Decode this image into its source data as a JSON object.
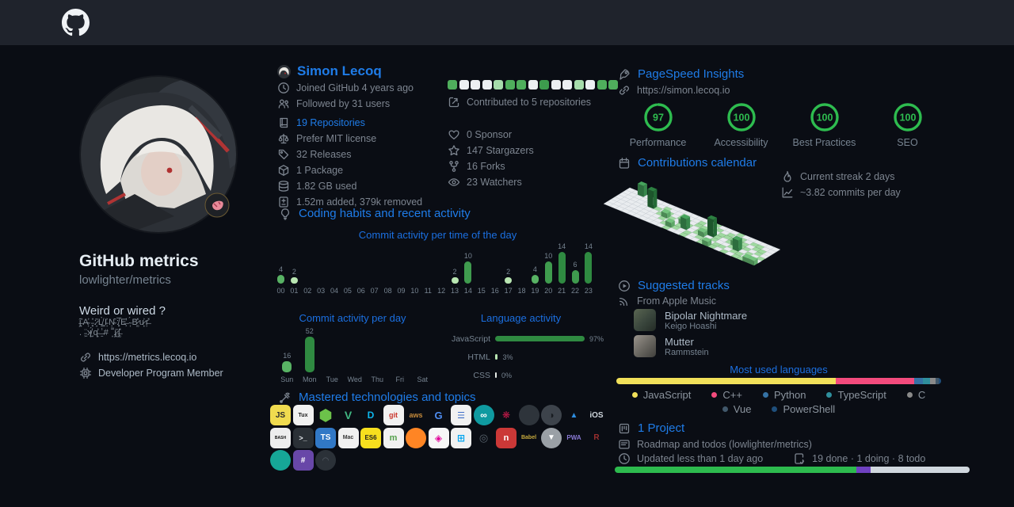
{
  "accent": {
    "blue": "#1f7ce8",
    "green": "#2ebc4f",
    "bg": "#0a0d14",
    "topbar": "#1f232c"
  },
  "left": {
    "title": "GitHub metrics",
    "subtitle": "lowlighter/metrics",
    "tagline": "Weird or wired ?",
    "glitch1": "ĵ̶̟̏A̴͎͐ ̵͓̎:̷̘͂L̸͇̀I̵͎͐Ņ̴̂:̸͓̅E̶͕̓ ̴͎́B̷͚̽u̷̙͐ŗ̶̽",
    "glitch2": ".  ̵͖̈ʞ̸̺́q̵̙̓ ̶̱̾# ͙͌ɟ̷̘͂ʃ̶̻̽",
    "website": "https://metrics.lecoq.io",
    "membership": "Developer Program Member"
  },
  "user": {
    "name": "Simon Lecoq",
    "joined": "Joined GitHub 4 years ago",
    "followed": "Followed by 31 users",
    "repositories": "19 Repositories",
    "license": "Prefer MIT license",
    "releases": "32 Releases",
    "packages": "1 Package",
    "storage": "1.82 GB used",
    "lines": "1.52m added, 379k removed",
    "contributed": "Contributed to 5 repositories",
    "sponsors": "0 Sponsor",
    "stargazers": "147 Stargazers",
    "forks": "16 Forks",
    "watchers": "23 Watchers",
    "contributed_squares": [
      "#4fae5c",
      "#eceff2",
      "#eceff2",
      "#eceff2",
      "#a6dcab",
      "#4fae5c",
      "#4fae5c",
      "#eceff2",
      "#3d9c4d",
      "#eceff2",
      "#eceff2",
      "#a6dcab",
      "#eceff2",
      "#4fae5c",
      "#4fae5c"
    ]
  },
  "habits": {
    "title": "Coding habits and recent activity"
  },
  "tech": {
    "title": "Mastered technologies and topics",
    "rows": [
      [
        {
          "n": "javascript-icon",
          "l": "JS",
          "bg": "#f0db4f",
          "fg": "#2b2b2b",
          "sh": "s",
          "fs": 10
        },
        {
          "n": "linux-icon",
          "l": "Tux",
          "bg": "#f1f1f1",
          "fg": "#1a1a1a",
          "sh": "s",
          "fs": 7
        },
        {
          "n": "nodejs-icon",
          "l": "⬢",
          "bg": "",
          "fg": "#6cc24a",
          "sh": "n",
          "fs": 20
        },
        {
          "n": "vuejs-icon",
          "l": "V",
          "bg": "",
          "fg": "#41b883",
          "sh": "n",
          "fs": 14
        },
        {
          "n": "docker-icon",
          "l": "D",
          "bg": "",
          "fg": "#0db7ed",
          "sh": "n",
          "fs": 12
        },
        {
          "n": "git-icon",
          "l": "git",
          "bg": "#f1f1f1",
          "fg": "#c9342a",
          "sh": "s",
          "fs": 9
        },
        {
          "n": "aws-icon",
          "l": "aws",
          "bg": "",
          "fg": "#c78b3b",
          "sh": "n",
          "fs": 9
        },
        {
          "n": "google-icon",
          "l": "G",
          "bg": "",
          "fg": "#4e8cf0",
          "sh": "n",
          "fs": 13
        },
        {
          "n": "sql-icon",
          "l": "☰",
          "bg": "#f1f1f1",
          "fg": "#3f6ec7",
          "sh": "s",
          "fs": 11
        },
        {
          "n": "arduino-icon",
          "l": "∞",
          "bg": "#0f9aa0",
          "fg": "#ffffff",
          "sh": "c",
          "fs": 12
        },
        {
          "n": "raspberrypi-icon",
          "l": "❋",
          "bg": "",
          "fg": "#c51a4a",
          "sh": "n",
          "fs": 12
        },
        {
          "n": "github-icon",
          "l": "",
          "bg": "#2e343b",
          "fg": "#15191e",
          "sh": "c",
          "fs": 10
        },
        {
          "n": "json-icon",
          "l": "◑",
          "bg": "#3d434b",
          "fg": "#181c21",
          "sh": "c",
          "fs": 12
        },
        {
          "n": "azure-icon",
          "l": "▲",
          "bg": "",
          "fg": "#2e8de0",
          "sh": "n",
          "fs": 10
        },
        {
          "n": "ios-icon",
          "l": "iOS",
          "bg": "",
          "fg": "#cfd6dd",
          "sh": "n",
          "fs": 10
        }
      ],
      [
        {
          "n": "bash-icon",
          "l": "BASH",
          "bg": "#ededed",
          "fg": "#101010",
          "sh": "s",
          "fs": 5
        },
        {
          "n": "terminal-icon",
          "l": "&gt;_",
          "bg": "#2a3036",
          "fg": "#e2e6ea",
          "sh": "s",
          "fs": 9
        },
        {
          "n": "typescript-icon",
          "l": "TS",
          "bg": "#3178c6",
          "fg": "#ffffff",
          "sh": "s",
          "fs": 10
        },
        {
          "n": "macos-icon",
          "l": "Mac",
          "bg": "#f1f1f1",
          "fg": "#3a3a3a",
          "sh": "s",
          "fs": 7
        },
        {
          "n": "es6-icon",
          "l": "ES6",
          "bg": "#f7df1e",
          "fg": "#1f1f1f",
          "sh": "s",
          "fs": 8
        },
        {
          "n": "mongodb-icon",
          "l": "m",
          "bg": "#f1f1f1",
          "fg": "#55a04c",
          "sh": "s",
          "fs": 11
        },
        {
          "n": "firefox-icon",
          "l": "",
          "bg": "#ff8524",
          "fg": "#ffffff",
          "sh": "c",
          "fs": 9
        },
        {
          "n": "graphql-icon",
          "l": "◈",
          "bg": "#f7f7f7",
          "fg": "#e10098",
          "sh": "s",
          "fs": 12
        },
        {
          "n": "windows-icon",
          "l": "⊞",
          "bg": "#f1f1f1",
          "fg": "#00a4ef",
          "sh": "s",
          "fs": 12
        },
        {
          "n": "electron-icon",
          "l": "◎",
          "bg": "",
          "fg": "#59646e",
          "sh": "n",
          "fs": 13
        },
        {
          "n": "npm-icon",
          "l": "n",
          "bg": "#cb3837",
          "fg": "#ffffff",
          "sh": "s",
          "fs": 11
        },
        {
          "n": "babel-icon",
          "l": "Babel",
          "bg": "",
          "fg": "#c8ab3e",
          "sh": "n",
          "fs": 7
        },
        {
          "n": "v-lang-icon",
          "l": "▼",
          "bg": "#9aa0a6",
          "fg": "#ffffff",
          "sh": "c",
          "fs": 10
        },
        {
          "n": "pwa-icon",
          "l": "PWA",
          "bg": "",
          "fg": "#8a7ad6",
          "sh": "n",
          "fs": 8
        },
        {
          "n": "rust-icon",
          "l": "R",
          "bg": "",
          "fg": "#9c2f2f",
          "sh": "n",
          "fs": 10
        }
      ],
      [
        {
          "n": "ipfs-icon",
          "l": "",
          "bg": "#16a797",
          "fg": "#0b4a44",
          "sh": "c",
          "fs": 8
        },
        {
          "n": "webassembly-icon",
          "l": "#",
          "bg": "#6847a8",
          "fg": "#ffffff",
          "sh": "s",
          "fs": 10
        },
        {
          "n": "swoosh-logo-icon",
          "l": "◠",
          "bg": "#2b3138",
          "fg": "#5a626b",
          "sh": "c",
          "fs": 10
        }
      ]
    ]
  },
  "pagespeed": {
    "title": "PageSpeed Insights",
    "url": "https://simon.lecoq.io",
    "scores": [
      {
        "label": "Performance",
        "value": 97
      },
      {
        "label": "Accessibility",
        "value": 100
      },
      {
        "label": "Best Practices",
        "value": 100
      },
      {
        "label": "SEO",
        "value": 100
      }
    ]
  },
  "calendar": {
    "title": "Contributions calendar",
    "streak": "Current streak 2 days",
    "rate": "~3.82 commits per day"
  },
  "music": {
    "title": "Suggested tracks",
    "source": "From Apple Music",
    "tracks": [
      {
        "title": "Bipolar Nightmare",
        "artist": "Keigo Hoashi"
      },
      {
        "title": "Mutter",
        "artist": "Rammstein"
      }
    ]
  },
  "languages": {
    "title": "Most used languages",
    "segments": [
      {
        "name": "JavaScript",
        "pct": 67.5,
        "color": "#f1e05a"
      },
      {
        "name": "C++",
        "pct": 24.3,
        "color": "#f34b7d"
      },
      {
        "name": "Python",
        "pct": 2.6,
        "color": "#3572a5"
      },
      {
        "name": "TypeScript",
        "pct": 2.2,
        "color": "#2f8f9d"
      },
      {
        "name": "C",
        "pct": 1.7,
        "color": "#8a8a8a"
      },
      {
        "name": "Vue",
        "pct": 1.0,
        "color": "#41586b"
      },
      {
        "name": "PowerShell",
        "pct": 0.7,
        "color": "#1f4f7c"
      }
    ],
    "legend_rows": [
      [
        0,
        1,
        2,
        3,
        4
      ],
      [
        5,
        6
      ]
    ]
  },
  "project": {
    "title": "1 Project",
    "name": "Roadmap and todos (lowlighter/metrics)",
    "updated": "Updated less than 1 day ago",
    "status": "19 done · 1 doing · 8 todo",
    "progress": [
      {
        "label": "done",
        "pct": 68,
        "color": "#2dba4e"
      },
      {
        "label": "doing",
        "pct": 4,
        "color": "#6f42c1"
      },
      {
        "label": "todo",
        "pct": 28,
        "color": "#d0d7de"
      }
    ]
  },
  "chart_data": [
    {
      "type": "bar",
      "title": "Commit activity per time of the day",
      "categories": [
        "00",
        "01",
        "02",
        "03",
        "04",
        "05",
        "06",
        "07",
        "08",
        "09",
        "10",
        "11",
        "12",
        "13",
        "14",
        "15",
        "16",
        "17",
        "18",
        "19",
        "20",
        "21",
        "22",
        "23"
      ],
      "values": [
        4,
        2,
        0,
        0,
        0,
        0,
        0,
        0,
        0,
        0,
        0,
        0,
        0,
        2,
        10,
        0,
        0,
        2,
        0,
        4,
        10,
        14,
        6,
        14
      ],
      "ylim": [
        0,
        14
      ]
    },
    {
      "type": "bar",
      "title": "Commit activity per day",
      "categories": [
        "Sun",
        "Mon",
        "Tue",
        "Wed",
        "Thu",
        "Fri",
        "Sat"
      ],
      "values": [
        16,
        52,
        0,
        0,
        0,
        0,
        0
      ],
      "ylim": [
        0,
        52
      ]
    },
    {
      "type": "bar",
      "title": "Language activity",
      "categories": [
        "JavaScript",
        "HTML",
        "CSS"
      ],
      "values": [
        97,
        3,
        0
      ],
      "unit": "%"
    },
    {
      "type": "heatmap",
      "title": "Contributions calendar (isometric)",
      "columns": [
        "0000000",
        "0000000",
        "3000000",
        "0000000",
        "0000000",
        "0040000",
        "0010000",
        "0101000",
        "0012100",
        "0001010",
        "0110021",
        "0012110",
        "0001300",
        "0110011",
        "0011100",
        "1010210",
        "0104011",
        "0011102",
        "0110011",
        "1011010",
        "0112101",
        "0011310",
        "0101011",
        "0110101",
        "0011012",
        "0000102"
      ]
    }
  ]
}
